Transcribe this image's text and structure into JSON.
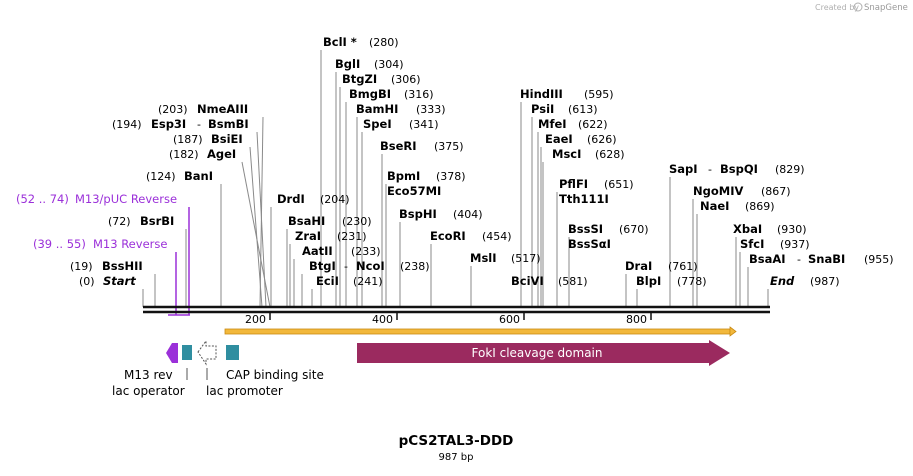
{
  "header": {
    "created_by": "Created by",
    "brand": "SnapGene"
  },
  "map": {
    "name": "pCS2TAL3-DDD",
    "length_label": "987 bp",
    "ruler": [
      "200",
      "400",
      "600",
      "800"
    ]
  },
  "sites": [
    {
      "name": "BclI *",
      "pos": "(280)"
    },
    {
      "name": "BglI",
      "pos": "(304)"
    },
    {
      "name": "BtgZI",
      "pos": "(306)"
    },
    {
      "name": "BmgBI",
      "pos": "(316)"
    },
    {
      "name": "BamHI",
      "pos": "(333)"
    },
    {
      "name": "SpeI",
      "pos": "(341)"
    },
    {
      "name": "BseRI",
      "pos": "(375)"
    },
    {
      "name": "BpmI",
      "pos": "(378)"
    },
    {
      "name": "Eco57MI",
      "pos": ""
    },
    {
      "name": "BspHI",
      "pos": "(404)"
    },
    {
      "name": "EcoRI",
      "pos": "(454)"
    },
    {
      "name": "MslI",
      "pos": "(517)"
    },
    {
      "name": "BciVI",
      "pos": "(581)"
    },
    {
      "name": "HindIII",
      "pos": "(595)"
    },
    {
      "name": "PsiI",
      "pos": "(613)"
    },
    {
      "name": "MfeI",
      "pos": "(622)"
    },
    {
      "name": "EaeI",
      "pos": "(626)"
    },
    {
      "name": "MscI",
      "pos": "(628)"
    },
    {
      "name": "PflFI",
      "pos": "(651)"
    },
    {
      "name": "Tth111I",
      "pos": ""
    },
    {
      "name": "BssSI",
      "pos": "(670)"
    },
    {
      "name": "BssSαI",
      "pos": ""
    },
    {
      "name": "SapI",
      "pos": ""
    },
    {
      "name": "BspQI",
      "pos": "(829)"
    },
    {
      "name": "NgoMIV",
      "pos": "(867)"
    },
    {
      "name": "NaeI",
      "pos": "(869)"
    },
    {
      "name": "XbaI",
      "pos": "(930)"
    },
    {
      "name": "SfcI",
      "pos": "(937)"
    },
    {
      "name": "BsaAI",
      "pos": ""
    },
    {
      "name": "SnaBI",
      "pos": "(955)"
    },
    {
      "name": "DraI",
      "pos": "(761)"
    },
    {
      "name": "BlpI",
      "pos": "(778)"
    },
    {
      "name": "End",
      "pos": "(987)"
    },
    {
      "name": "DrdI",
      "pos": "(204)"
    },
    {
      "name": "BsaHI",
      "pos": "(230)"
    },
    {
      "name": "ZraI",
      "pos": "(231)"
    },
    {
      "name": "AatII",
      "pos": "(233)"
    },
    {
      "name": "BtgI",
      "pos": ""
    },
    {
      "name": "NcoI",
      "pos": "(238)"
    },
    {
      "name": "EciI",
      "pos": "(241)"
    },
    {
      "name": "NmeAIII",
      "pos": "(203)"
    },
    {
      "name": "Esp3I",
      "pos": "(194)"
    },
    {
      "name": "BsmBI",
      "pos": ""
    },
    {
      "name": "BsiEI",
      "pos": "(187)"
    },
    {
      "name": "AgeI",
      "pos": "(182)"
    },
    {
      "name": "BanI",
      "pos": "(124)"
    },
    {
      "name": "BsrBI",
      "pos": "(72)"
    },
    {
      "name": "BssHII",
      "pos": "(19)"
    },
    {
      "name": "Start",
      "pos": "(0)"
    }
  ],
  "primers": [
    {
      "label": "M13/pUC Reverse",
      "range": "(52 .. 74)"
    },
    {
      "label": "M13 Reverse",
      "range": "(39 .. 55)"
    }
  ],
  "features": [
    {
      "label": "FokI cleavage domain"
    },
    {
      "label": "M13 rev"
    },
    {
      "label": "lac operator"
    },
    {
      "label": "lac promoter"
    },
    {
      "label": "CAP binding site"
    }
  ],
  "colors": {
    "primer": "#9b30d9",
    "fok": "#9b2a5f",
    "teal": "#2f8ea0",
    "orf": "#f2b83c"
  }
}
